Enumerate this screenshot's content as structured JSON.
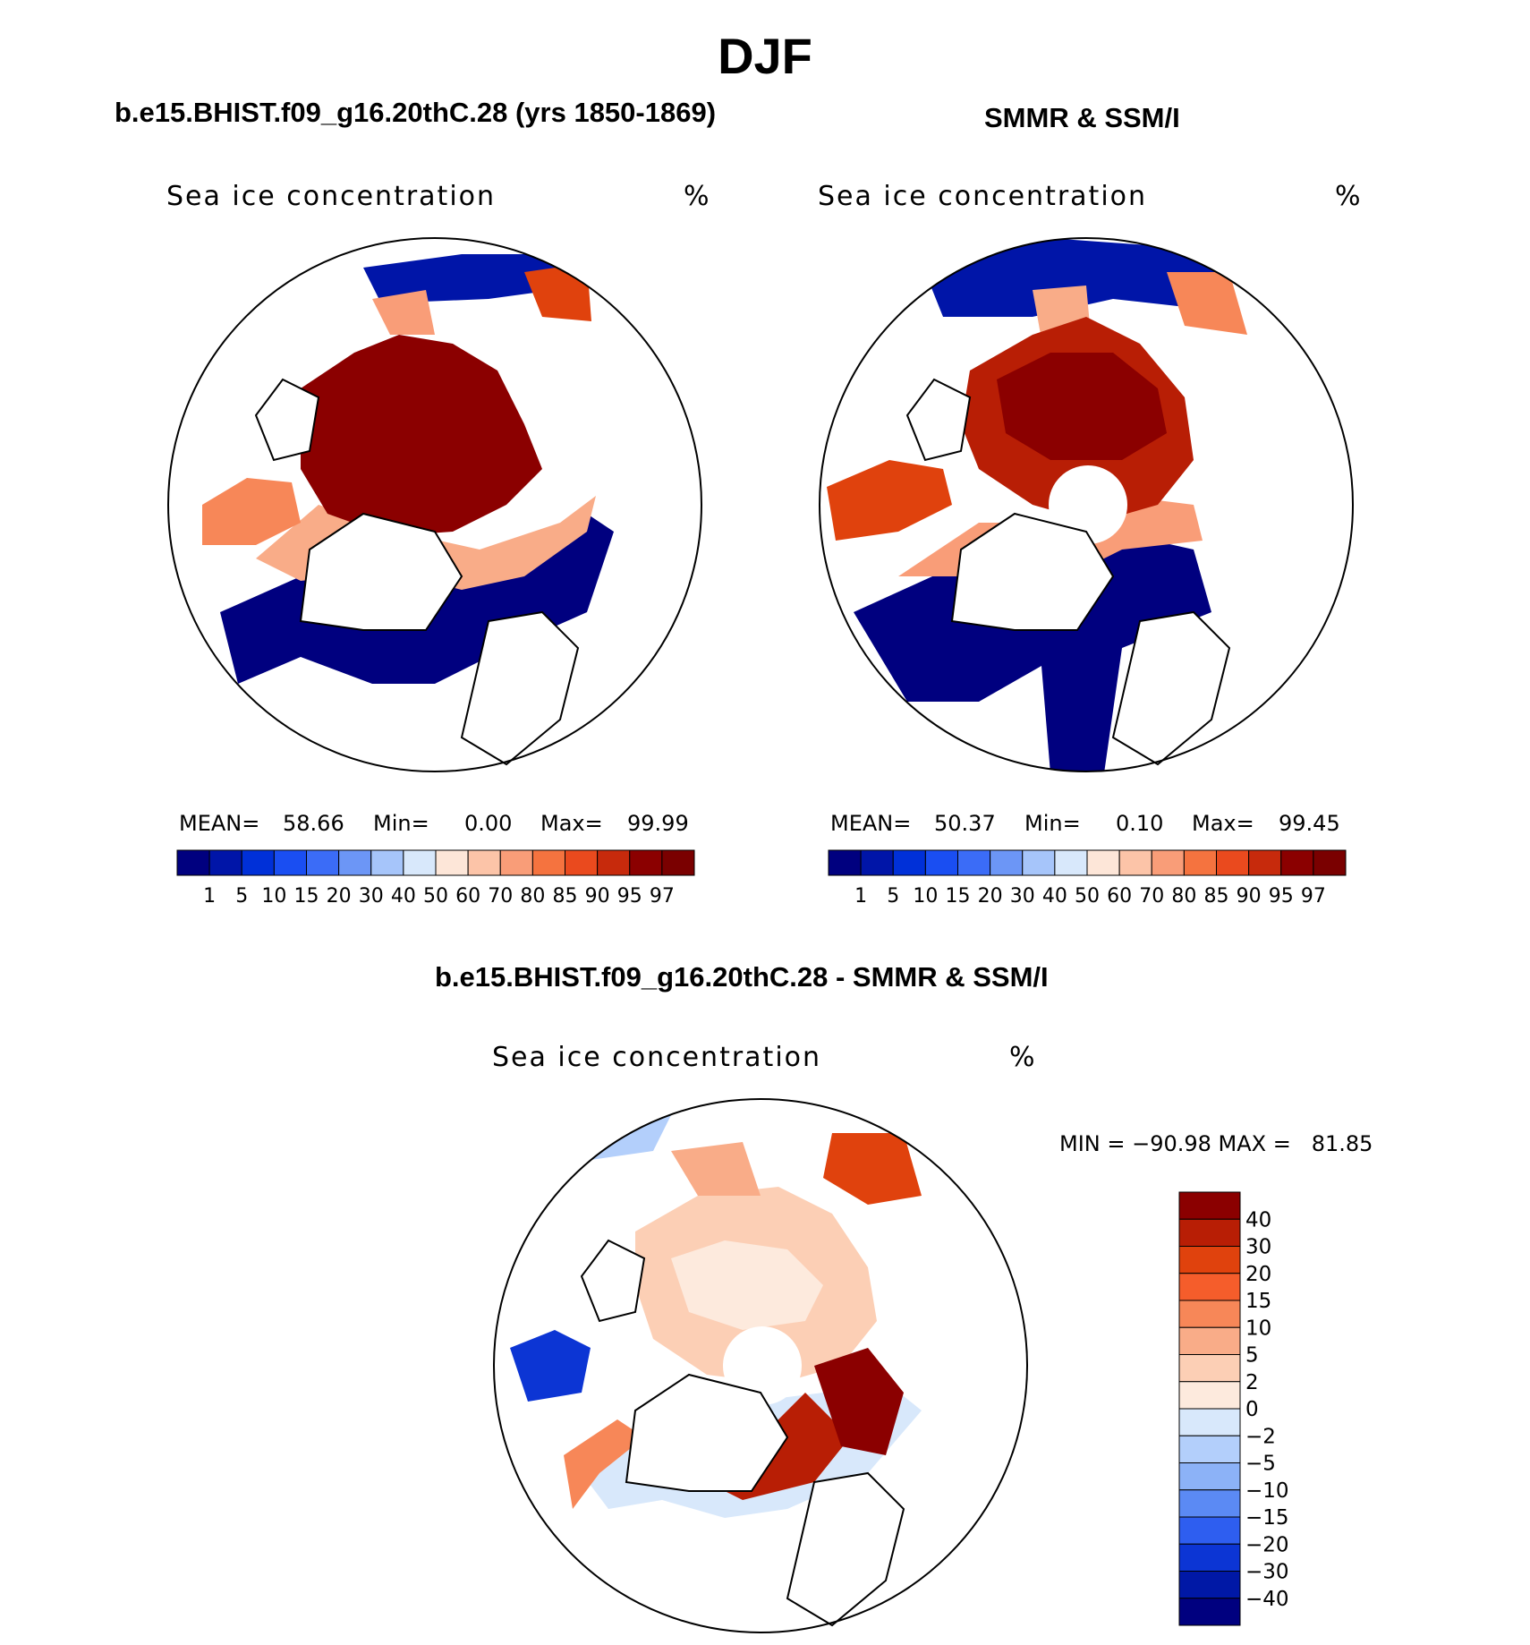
{
  "title": "DJF",
  "panels": [
    {
      "title": "b.e15.BHIST.f09_g16.20thC.28 (yrs 1850-1869)",
      "field": "Sea ice concentration",
      "unit": "%",
      "mean_label": "MEAN=",
      "mean": "58.66",
      "min_label": "Min=",
      "min": "0.00",
      "max_label": "Max=",
      "max": "99.99"
    },
    {
      "title": "SMMR & SSM/I",
      "field": "Sea ice concentration",
      "unit": "%",
      "mean_label": "MEAN=",
      "mean": "50.37",
      "min_label": "Min=",
      "min": "0.10",
      "max_label": "Max=",
      "max": "99.45"
    },
    {
      "title": "b.e15.BHIST.f09_g16.20thC.28 - SMMR & SSM/I",
      "field": "Sea ice concentration",
      "unit": "%",
      "minmax_text": "MIN = −90.98 MAX =   81.85"
    }
  ],
  "colorbar_conc": {
    "labels": [
      "1",
      "5",
      "10",
      "15",
      "20",
      "30",
      "40",
      "50",
      "60",
      "70",
      "80",
      "85",
      "90",
      "95",
      "97"
    ],
    "colors": [
      "#00007f",
      "#0015a8",
      "#0030d8",
      "#1a4ef2",
      "#3b6cf7",
      "#6c96f6",
      "#a6c5fa",
      "#d8e8fb",
      "#fde6d8",
      "#fcc4a8",
      "#f99d78",
      "#f5733f",
      "#ea4a1e",
      "#c72a0c",
      "#8b0000",
      "#7a0000"
    ]
  },
  "colorbar_diff": {
    "labels": [
      "40",
      "30",
      "20",
      "15",
      "10",
      "5",
      "2",
      "0",
      "−2",
      "−5",
      "−10",
      "−15",
      "−20",
      "−30",
      "−40"
    ],
    "colors": [
      "#8b0000",
      "#b81e05",
      "#e0420d",
      "#f55d2b",
      "#f78758",
      "#f9ac88",
      "#fccfb5",
      "#fdeadd",
      "#d8e8fb",
      "#b3cffb",
      "#8cb2f7",
      "#5b8af4",
      "#2e5ef0",
      "#0c35d4",
      "#0018a6",
      "#00007f"
    ]
  }
}
